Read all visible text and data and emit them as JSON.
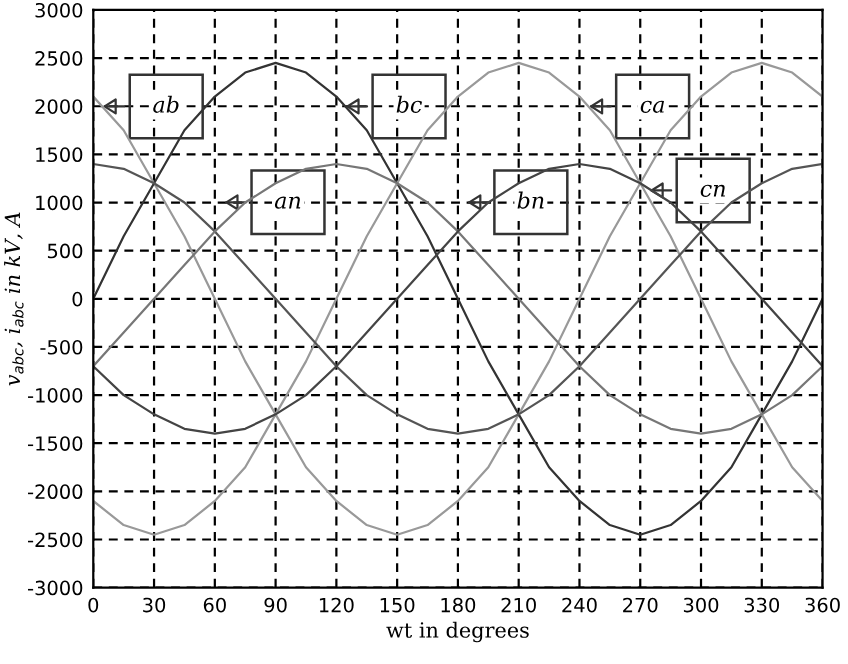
{
  "chart_data": {
    "type": "line",
    "xlabel": "wt in degrees",
    "ylabel": "v$_{abc}$, i$_{abc}$ in kV, A",
    "x": [
      0,
      15,
      30,
      45,
      60,
      75,
      90,
      105,
      120,
      135,
      150,
      165,
      180,
      195,
      210,
      225,
      240,
      255,
      270,
      285,
      300,
      315,
      330,
      345,
      360
    ],
    "series": [
      {
        "color": "#999999",
        "values": [
          2100,
          1750,
          1200,
          650,
          0,
          -650,
          -1200,
          -1750,
          -2100,
          -2350,
          -2450,
          -2350,
          -2100,
          -1750,
          -1200,
          -650,
          0,
          650,
          1200,
          1750,
          2100,
          2350,
          2450,
          2350,
          2100
        ]
      },
      {
        "color": "#333333",
        "values": [
          0,
          650,
          1200,
          1750,
          2100,
          2350,
          2450,
          2350,
          2100,
          1750,
          1200,
          650,
          0,
          -650,
          -1200,
          -1750,
          -2100,
          -2350,
          -2450,
          -2350,
          -2100,
          -1750,
          -1200,
          -650,
          0
        ]
      },
      {
        "color": "#999999",
        "values": [
          -2100,
          -2350,
          -2450,
          -2350,
          -2100,
          -1750,
          -1200,
          -650,
          0,
          650,
          1200,
          1750,
          2100,
          2350,
          2450,
          2350,
          2100,
          1750,
          1200,
          650,
          0,
          -650,
          -1200,
          -1750,
          -2100
        ]
      },
      {
        "color": "#555555",
        "values": [
          1400,
          1350,
          1200,
          1000,
          700,
          350,
          0,
          -350,
          -700,
          -1000,
          -1200,
          -1350,
          -1400,
          -1350,
          -1200,
          -1000,
          -700,
          -350,
          0,
          350,
          700,
          1000,
          1200,
          1350,
          1400
        ]
      },
      {
        "color": "#777777",
        "values": [
          -700,
          -350,
          0,
          350,
          700,
          1000,
          1200,
          1350,
          1400,
          1350,
          1200,
          1000,
          700,
          350,
          0,
          -350,
          -700,
          -1000,
          -1200,
          -1350,
          -1400,
          -1350,
          -1200,
          -1000,
          -700
        ]
      },
      {
        "color": "#444444",
        "values": [
          -700,
          -1000,
          -1200,
          -1350,
          -1400,
          -1350,
          -1200,
          -1000,
          -700,
          -350,
          0,
          350,
          700,
          1000,
          1200,
          1350,
          1400,
          1350,
          1200,
          1000,
          700,
          350,
          0,
          -350,
          -700
        ]
      }
    ],
    "annotations": [
      "ab",
      "bc",
      "ca",
      "an",
      "bn",
      "cn"
    ],
    "xlim": [
      0,
      360
    ],
    "xticks": [
      0,
      30,
      60,
      90,
      120,
      150,
      180,
      210,
      240,
      270,
      300,
      330,
      360
    ],
    "ylim": [
      -3000,
      3000
    ],
    "yticks": [
      -3000,
      -2500,
      -2000,
      -1500,
      -1000,
      -500,
      0,
      500,
      1000,
      1500,
      2000,
      2500,
      3000
    ],
    "grid": true,
    "marker": "none",
    "line_style": "solid",
    "legend": false
  }
}
